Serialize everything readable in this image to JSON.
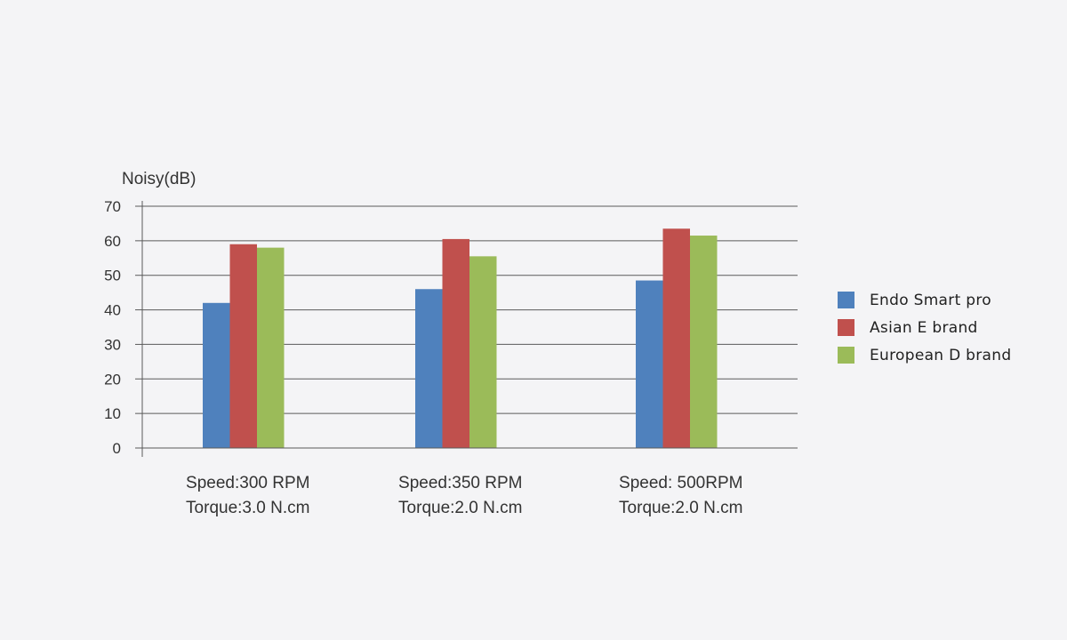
{
  "chart_data": {
    "type": "bar",
    "ylabel": "Noisy(dB)",
    "xlabel": "",
    "ylim": [
      0,
      70
    ],
    "yticks": [
      0,
      10,
      20,
      30,
      40,
      50,
      60,
      70
    ],
    "grid": true,
    "legend_position": "right",
    "categories": [
      [
        "Speed:300 RPM",
        "Torque:3.0 N.cm"
      ],
      [
        "Speed:350 RPM",
        "Torque:2.0 N.cm"
      ],
      [
        "Speed: 500RPM",
        "Torque:2.0 N.cm"
      ]
    ],
    "series": [
      {
        "name": "Endo Smart pro",
        "color": "#4f81bd",
        "values": [
          42,
          46,
          48.5
        ]
      },
      {
        "name": "Asian E brand",
        "color": "#c0504d",
        "values": [
          59,
          60.5,
          63.5
        ]
      },
      {
        "name": "European D brand",
        "color": "#9bbb59",
        "values": [
          58,
          55.5,
          61.5
        ]
      }
    ]
  }
}
